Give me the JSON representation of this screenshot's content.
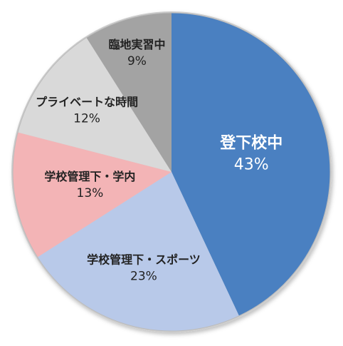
{
  "chart_data": {
    "type": "pie",
    "categories": [
      "登下校中",
      "学校管理下・スポーツ",
      "学校管理下・学内",
      "プライベートな時間",
      "臨地実習中"
    ],
    "values": [
      43,
      23,
      13,
      12,
      9
    ],
    "value_labels": [
      "43%",
      "23%",
      "13%",
      "12%",
      "9%"
    ],
    "colors": [
      "#4a80c1",
      "#b8c9e9",
      "#f3b4b6",
      "#d9d9d9",
      "#a3a3a3"
    ]
  }
}
